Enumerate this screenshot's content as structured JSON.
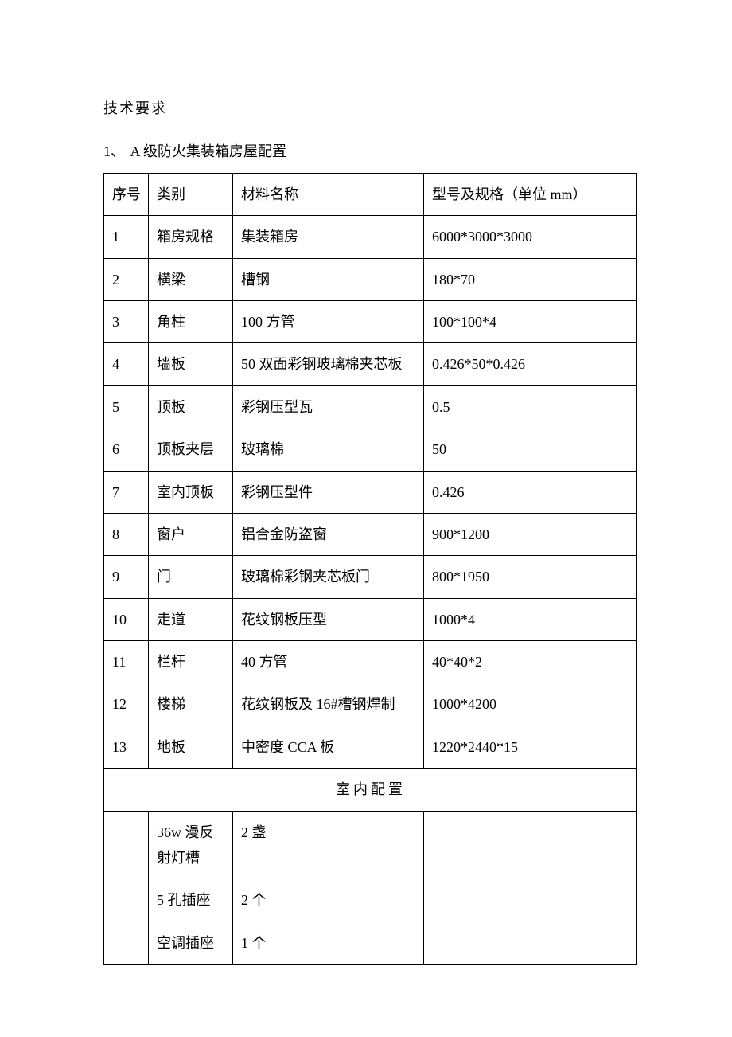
{
  "title": "技术要求",
  "list_number": "1、",
  "list_title": "A 级防火集装箱房屋配置",
  "table": {
    "columns": [
      "序号",
      "类别",
      "材料名称",
      "型号及规格（单位 mm）"
    ],
    "rows": [
      [
        "1",
        "箱房规格",
        "集装箱房",
        "6000*3000*3000"
      ],
      [
        "2",
        "横梁",
        "槽钢",
        "180*70"
      ],
      [
        "3",
        "角柱",
        "100 方管",
        "100*100*4"
      ],
      [
        "4",
        "墙板",
        "50 双面彩钢玻璃棉夹芯板",
        "0.426*50*0.426"
      ],
      [
        "5",
        "顶板",
        "彩钢压型瓦",
        "0.5"
      ],
      [
        "6",
        "顶板夹层",
        "玻璃棉",
        "50"
      ],
      [
        "7",
        "室内顶板",
        "彩钢压型件",
        "0.426"
      ],
      [
        "8",
        "窗户",
        "铝合金防盗窗",
        "900*1200"
      ],
      [
        "9",
        "门",
        "玻璃棉彩钢夹芯板门",
        "800*1950"
      ],
      [
        "10",
        "走道",
        "花纹钢板压型",
        "1000*4"
      ],
      [
        "11",
        "栏杆",
        "40 方管",
        "40*40*2"
      ],
      [
        "12",
        "楼梯",
        "花纹钢板及 16#槽钢焊制",
        "1000*4200"
      ],
      [
        "13",
        "地板",
        "中密度 CCA 板",
        "1220*2440*15"
      ]
    ],
    "section_title": "室内配置",
    "section_rows": [
      [
        "",
        "36w 漫反射灯槽",
        "2 盏",
        ""
      ],
      [
        "",
        "5 孔插座",
        "2 个",
        ""
      ],
      [
        "",
        "空调插座",
        "1 个",
        ""
      ]
    ]
  }
}
